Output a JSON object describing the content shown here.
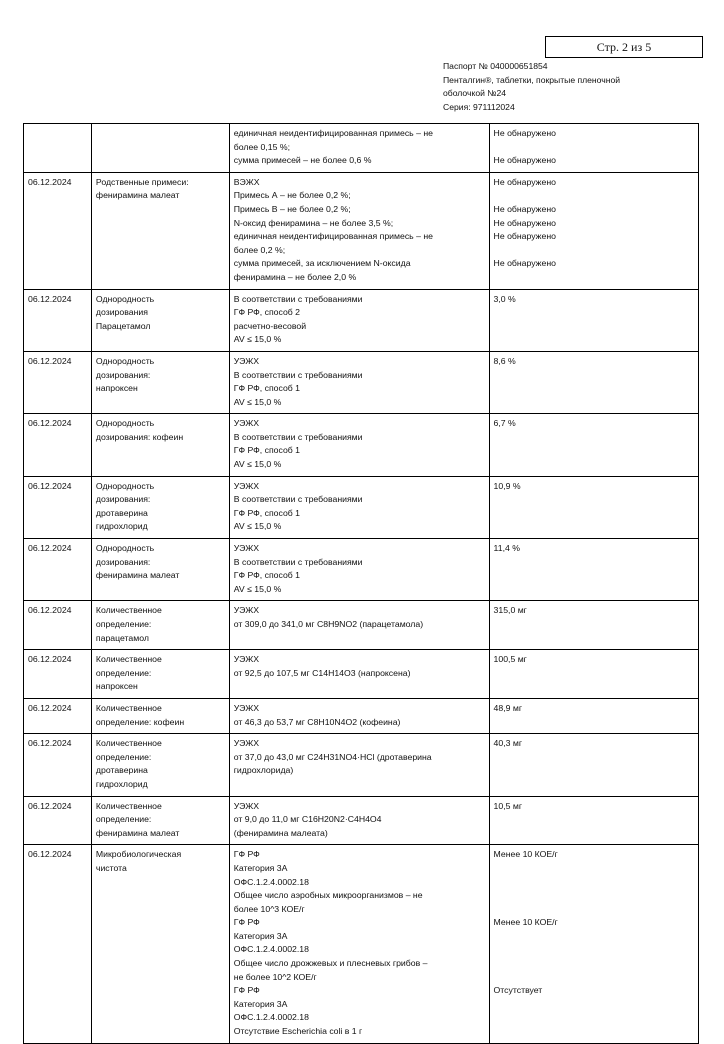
{
  "page_indicator": "Стр. 2 из 5",
  "header": {
    "lines": [
      "Паспорт № 040000651854",
      "Пенталгин®, таблетки, покрытые пленочной",
      "оболочкой №24",
      "Серия: 971112024"
    ]
  },
  "table": {
    "rows": [
      {
        "date": "",
        "test": [],
        "method": [
          "единичная неидентифицированная примесь – не",
          "более 0,15 %;",
          "сумма примесей – не более 0,6 %"
        ],
        "result": [
          "Не обнаружено",
          "",
          "Не обнаружено"
        ]
      },
      {
        "date": "06.12.2024",
        "test": [
          "Родственные примеси:",
          "фенирамина малеат"
        ],
        "method": [
          "ВЭЖХ",
          "Примесь А – не более 0,2 %;",
          "Примесь В – не более 0,2 %;",
          "N-оксид фенирамина – не более 3,5 %;",
          "единичная неидентифицированная примесь – не",
          "более 0,2 %;",
          "сумма примесей, за исключением N-оксида",
          "фенирамина – не более 2,0 %"
        ],
        "result": [
          "Не обнаружено",
          "",
          "Не обнаружено",
          "Не обнаружено",
          "Не обнаружено",
          "",
          "Не обнаружено"
        ]
      },
      {
        "date": "06.12.2024",
        "test": [
          "Однородность",
          "дозирования",
          "Парацетамол"
        ],
        "method": [
          "В соответствии с требованиями",
          "ГФ РФ, способ 2",
          "расчетно-весовой",
          "AV ≤ 15,0 %"
        ],
        "result": [
          "3,0 %"
        ]
      },
      {
        "date": "06.12.2024",
        "test": [
          "Однородность",
          "дозирования:",
          "напроксен"
        ],
        "method": [
          "УЭЖХ",
          "В соответствии с требованиями",
          "ГФ РФ, способ 1",
          "AV ≤ 15,0 %"
        ],
        "result": [
          "8,6 %"
        ]
      },
      {
        "date": "06.12.2024",
        "test": [
          "Однородность",
          "дозирования: кофеин"
        ],
        "method": [
          "УЭЖХ",
          "В соответствии с требованиями",
          "ГФ РФ, способ 1",
          "AV ≤ 15,0 %"
        ],
        "result": [
          "6,7 %"
        ]
      },
      {
        "date": "06.12.2024",
        "test": [
          "Однородность",
          "дозирования:",
          "дротаверина",
          "гидрохлорид"
        ],
        "method": [
          "УЭЖХ",
          "В соответствии с требованиями",
          "ГФ РФ, способ 1",
          "AV ≤ 15,0 %"
        ],
        "result": [
          "10,9 %"
        ]
      },
      {
        "date": "06.12.2024",
        "test": [
          "Однородность",
          "дозирования:",
          "фенирамина малеат"
        ],
        "method": [
          "УЭЖХ",
          "В соответствии с требованиями",
          "ГФ РФ, способ 1",
          "AV ≤ 15,0 %"
        ],
        "result": [
          "11,4 %"
        ]
      },
      {
        "date": "06.12.2024",
        "test": [
          "Количественное",
          "определение:",
          "парацетамол"
        ],
        "method": [
          "УЭЖХ",
          "от 309,0 до 341,0 мг C8H9NO2 (парацетамола)"
        ],
        "result": [
          "315,0 мг"
        ]
      },
      {
        "date": "06.12.2024",
        "test": [
          "Количественное",
          "определение:",
          "напроксен"
        ],
        "method": [
          "УЭЖХ",
          "от 92,5 до 107,5 мг C14H14O3 (напроксена)"
        ],
        "result": [
          "100,5 мг"
        ]
      },
      {
        "date": "06.12.2024",
        "test": [
          "Количественное",
          "определение: кофеин"
        ],
        "method": [
          "УЭЖХ",
          "от 46,3 до 53,7 мг C8H10N4O2 (кофеина)"
        ],
        "result": [
          "48,9 мг"
        ]
      },
      {
        "date": "06.12.2024",
        "test": [
          "Количественное",
          "определение:",
          "дротаверина",
          "гидрохлорид"
        ],
        "method": [
          "УЭЖХ",
          "от 37,0 до 43,0 мг C24H31NO4·HCl (дротаверина",
          "гидрохлорида)"
        ],
        "result": [
          "40,3 мг"
        ]
      },
      {
        "date": "06.12.2024",
        "test": [
          "Количественное",
          "определение:",
          "фенирамина малеат"
        ],
        "method": [
          "УЭЖХ",
          "от 9,0 до 11,0 мг C16H20N2·C4H4O4",
          "(фенирамина малеата)"
        ],
        "result": [
          "10,5 мг"
        ]
      },
      {
        "date": "06.12.2024",
        "test": [
          "Микробиологическая",
          "чистота"
        ],
        "method": [
          "ГФ РФ",
          "Категория 3А",
          "ОФС.1.2.4.0002.18",
          "Общее число аэробных микроорганизмов – не",
          "более 10^3 КОЕ/г",
          "ГФ РФ",
          "Категория 3А",
          "ОФС.1.2.4.0002.18",
          "Общее число дрожжевых и плесневых грибов –",
          "не более 10^2 КОЕ/г",
          "ГФ РФ",
          "Категория 3А",
          "ОФС.1.2.4.0002.18",
          "Отсутствие Escherichia coli в 1 г"
        ],
        "result": [
          "Менее 10 КОЕ/г",
          "",
          "",
          "",
          "",
          "Менее 10 КОЕ/г",
          "",
          "",
          "",
          "",
          "Отсутствует"
        ]
      }
    ]
  }
}
